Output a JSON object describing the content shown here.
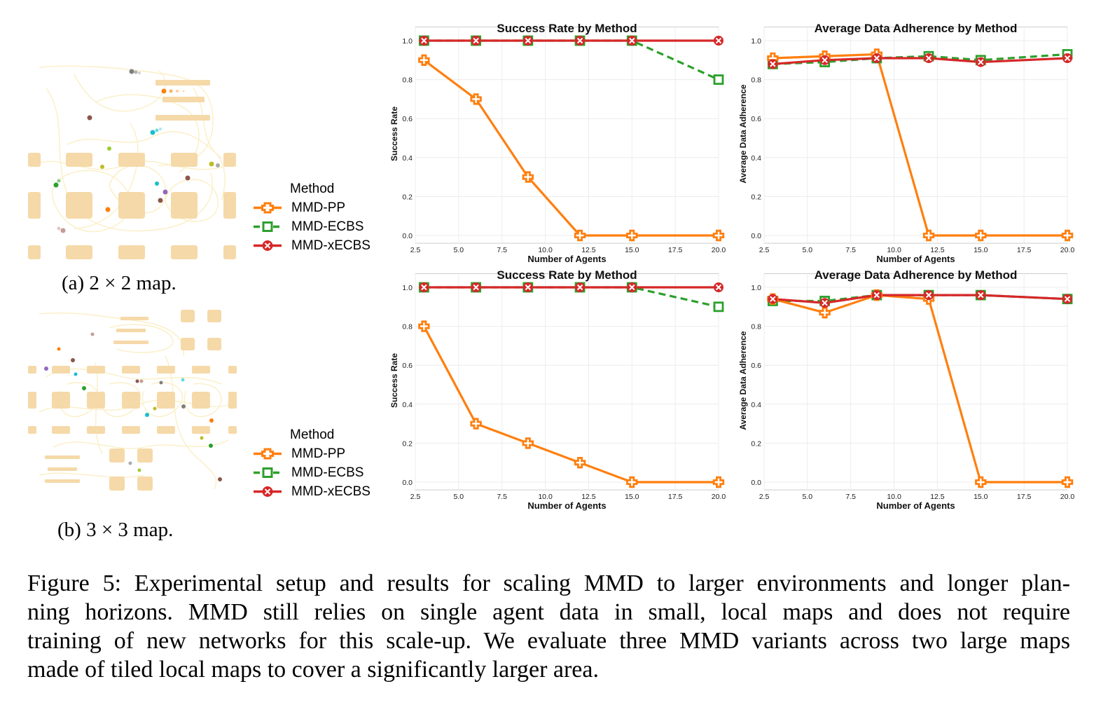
{
  "panels": [
    {
      "caption": "(a) 2 × 2 map.",
      "legend": {
        "title": "Method",
        "entries": [
          {
            "label": "MMD-PP",
            "color": "#ff7f0e",
            "marker": "plus"
          },
          {
            "label": "MMD-ECBS",
            "color": "#2ca02c",
            "marker": "square"
          },
          {
            "label": "MMD-xECBS",
            "color": "#d62728",
            "marker": "x"
          }
        ]
      }
    },
    {
      "caption": "(b) 3 × 3 map.",
      "legend": {
        "title": "Method",
        "entries": [
          {
            "label": "MMD-PP",
            "color": "#ff7f0e",
            "marker": "plus"
          },
          {
            "label": "MMD-ECBS",
            "color": "#2ca02c",
            "marker": "square"
          },
          {
            "label": "MMD-xECBS",
            "color": "#d62728",
            "marker": "x"
          }
        ]
      }
    }
  ],
  "chart_data": [
    {
      "type": "line",
      "title": "Success Rate by Method",
      "xlabel": "Number of Agents",
      "ylabel": "Success Rate",
      "xlim": [
        2.5,
        20.0
      ],
      "ylim": [
        0.0,
        1.0
      ],
      "xticks": [
        "2.5",
        "5.0",
        "7.5",
        "10.0",
        "12.5",
        "15.0",
        "17.5",
        "20.0"
      ],
      "yticks": [
        "0.0",
        "0.2",
        "0.4",
        "0.6",
        "0.8",
        "1.0"
      ],
      "grid": true,
      "x": [
        3,
        6,
        9,
        12,
        15,
        20
      ],
      "series": [
        {
          "name": "MMD-PP",
          "color": "#ff7f0e",
          "marker": "plus",
          "dash": false,
          "values": [
            0.9,
            0.7,
            0.3,
            0.0,
            0.0,
            0.0
          ]
        },
        {
          "name": "MMD-ECBS",
          "color": "#2ca02c",
          "marker": "square",
          "dash": true,
          "values": [
            1.0,
            1.0,
            1.0,
            1.0,
            1.0,
            0.8
          ]
        },
        {
          "name": "MMD-xECBS",
          "color": "#d62728",
          "marker": "x",
          "dash": false,
          "values": [
            1.0,
            1.0,
            1.0,
            1.0,
            1.0,
            1.0
          ]
        }
      ]
    },
    {
      "type": "line",
      "title": "Average Data Adherence by Method",
      "xlabel": "Number of Agents",
      "ylabel": "Average Data Adherence",
      "xlim": [
        2.5,
        20.0
      ],
      "ylim": [
        0.0,
        1.0
      ],
      "xticks": [
        "2.5",
        "5.0",
        "7.5",
        "10.0",
        "12.5",
        "15.0",
        "17.5",
        "20.0"
      ],
      "yticks": [
        "0.0",
        "0.2",
        "0.4",
        "0.6",
        "0.8",
        "1.0"
      ],
      "grid": true,
      "x": [
        3,
        6,
        9,
        12,
        15,
        20
      ],
      "series": [
        {
          "name": "MMD-PP",
          "color": "#ff7f0e",
          "marker": "plus",
          "dash": false,
          "values": [
            0.91,
            0.92,
            0.93,
            0.0,
            0.0,
            0.0
          ]
        },
        {
          "name": "MMD-ECBS",
          "color": "#2ca02c",
          "marker": "square",
          "dash": true,
          "values": [
            0.88,
            0.89,
            0.91,
            0.92,
            0.9,
            0.93
          ]
        },
        {
          "name": "MMD-xECBS",
          "color": "#d62728",
          "marker": "x",
          "dash": false,
          "values": [
            0.88,
            0.9,
            0.91,
            0.91,
            0.89,
            0.91
          ]
        }
      ]
    },
    {
      "type": "line",
      "title": "Success Rate by Method",
      "xlabel": "Number of Agents",
      "ylabel": "Success Rate",
      "xlim": [
        2.5,
        20.0
      ],
      "ylim": [
        0.0,
        1.0
      ],
      "xticks": [
        "2.5",
        "5.0",
        "7.5",
        "10.0",
        "12.5",
        "15.0",
        "17.5",
        "20.0"
      ],
      "yticks": [
        "0.0",
        "0.2",
        "0.4",
        "0.6",
        "0.8",
        "1.0"
      ],
      "grid": true,
      "x": [
        3,
        6,
        9,
        12,
        15,
        20
      ],
      "series": [
        {
          "name": "MMD-PP",
          "color": "#ff7f0e",
          "marker": "plus",
          "dash": false,
          "values": [
            0.8,
            0.3,
            0.2,
            0.1,
            0.0,
            0.0
          ]
        },
        {
          "name": "MMD-ECBS",
          "color": "#2ca02c",
          "marker": "square",
          "dash": true,
          "values": [
            1.0,
            1.0,
            1.0,
            1.0,
            1.0,
            0.9
          ]
        },
        {
          "name": "MMD-xECBS",
          "color": "#d62728",
          "marker": "x",
          "dash": false,
          "values": [
            1.0,
            1.0,
            1.0,
            1.0,
            1.0,
            1.0
          ]
        }
      ]
    },
    {
      "type": "line",
      "title": "Average Data Adherence by Method",
      "xlabel": "Number of Agents",
      "ylabel": "Average Data Adherence",
      "xlim": [
        2.5,
        20.0
      ],
      "ylim": [
        0.0,
        1.0
      ],
      "xticks": [
        "2.5",
        "5.0",
        "7.5",
        "10.0",
        "12.5",
        "15.0",
        "17.5",
        "20.0"
      ],
      "yticks": [
        "0.0",
        "0.2",
        "0.4",
        "0.6",
        "0.8",
        "1.0"
      ],
      "grid": true,
      "x": [
        3,
        6,
        9,
        12,
        15,
        20
      ],
      "series": [
        {
          "name": "MMD-PP",
          "color": "#ff7f0e",
          "marker": "plus",
          "dash": false,
          "values": [
            0.94,
            0.87,
            0.96,
            0.94,
            0.0,
            0.0
          ]
        },
        {
          "name": "MMD-ECBS",
          "color": "#2ca02c",
          "marker": "square",
          "dash": true,
          "values": [
            0.93,
            0.93,
            0.96,
            0.96,
            0.96,
            0.94
          ]
        },
        {
          "name": "MMD-xECBS",
          "color": "#d62728",
          "marker": "x",
          "dash": false,
          "values": [
            0.94,
            0.92,
            0.96,
            0.96,
            0.96,
            0.94
          ]
        }
      ]
    }
  ],
  "figure_caption": [
    "Figure 5: Experimental setup and results for scaling MMD to larger environments and longer plan-",
    "ning horizons. MMD still relies on single agent data in small, local maps and does not require",
    "training of new networks for this scale-up. We evaluate three MMD variants across two large maps",
    "made of tiled local maps to cover a significantly larger area."
  ]
}
